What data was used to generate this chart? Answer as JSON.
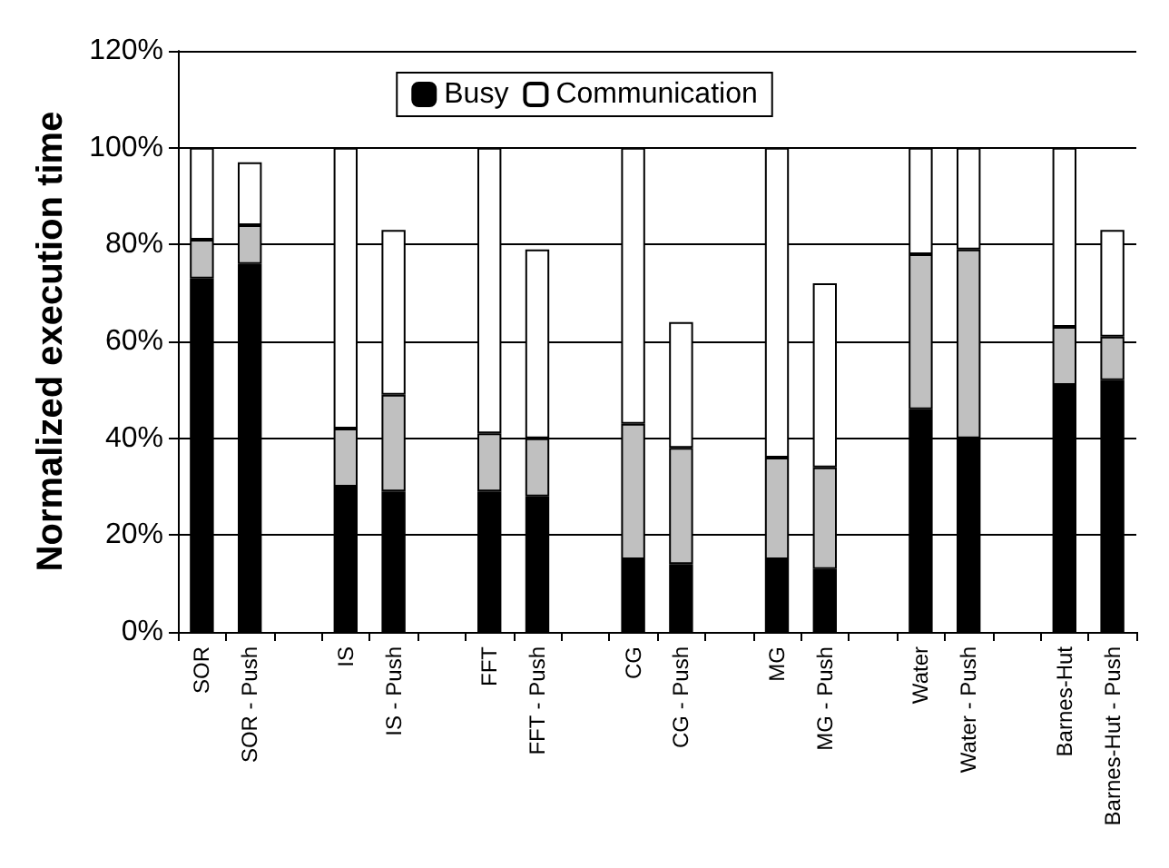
{
  "chart_data": {
    "type": "bar",
    "stacked": true,
    "ylabel": "Normalized execution time",
    "categories": [
      "SOR",
      "SOR - Push",
      null,
      "IS",
      "IS - Push",
      null,
      "FFT",
      "FFT - Push",
      null,
      "CG",
      "CG - Push",
      null,
      "MG",
      "MG - Push",
      null,
      "Water",
      "Water - Push",
      null,
      "Barnes-Hut",
      "Barnes-Hut - Push"
    ],
    "series": [
      {
        "name": "Busy",
        "color": "#000000",
        "values": [
          73,
          76,
          null,
          30,
          29,
          null,
          29,
          28,
          null,
          15,
          14,
          null,
          15,
          13,
          null,
          46,
          40,
          null,
          51,
          52
        ]
      },
      {
        "color": "#c0c0c0",
        "values": [
          8,
          8,
          null,
          12,
          20,
          null,
          12,
          12,
          null,
          28,
          24,
          null,
          21,
          21,
          null,
          32,
          39,
          null,
          12,
          9
        ]
      },
      {
        "name": "Communication",
        "color": "#ffffff",
        "values": [
          19,
          13,
          null,
          58,
          34,
          null,
          59,
          39,
          null,
          57,
          26,
          null,
          64,
          38,
          null,
          22,
          21,
          null,
          37,
          22
        ]
      }
    ],
    "ylim": [
      0,
      120
    ],
    "yticks": [
      {
        "value": 0,
        "label": "0%"
      },
      {
        "value": 20,
        "label": "20%"
      },
      {
        "value": 40,
        "label": "40%"
      },
      {
        "value": 60,
        "label": "60%"
      },
      {
        "value": 80,
        "label": "80%"
      },
      {
        "value": 100,
        "label": "100%"
      },
      {
        "value": 120,
        "label": "120%"
      }
    ],
    "grid": "y",
    "legend": "top"
  }
}
